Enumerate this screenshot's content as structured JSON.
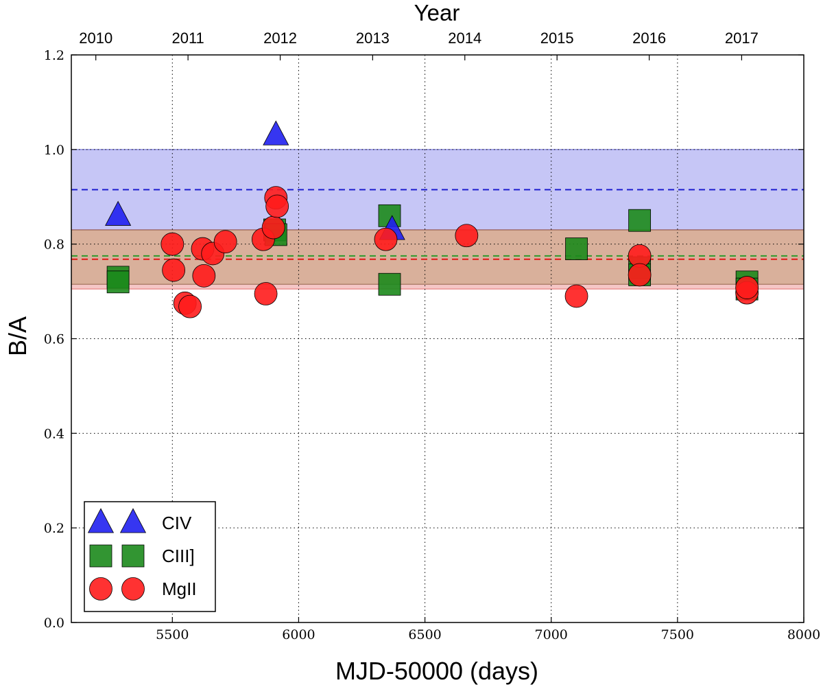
{
  "chart_data": {
    "type": "scatter",
    "title": "",
    "xlabel": "MJD-50000 (days)",
    "ylabel": "B/A",
    "top_axis_label": "Year",
    "xlim": [
      5100,
      8000
    ],
    "ylim": [
      0.0,
      1.2
    ],
    "grid": true,
    "x_ticks": [
      5500,
      6000,
      6500,
      7000,
      7500,
      8000
    ],
    "y_ticks": [
      0.0,
      0.2,
      0.4,
      0.6,
      0.8,
      1.0,
      1.2
    ],
    "top_ticks": [
      {
        "label": "2010",
        "x": 5197
      },
      {
        "label": "2011",
        "x": 5562
      },
      {
        "label": "2012",
        "x": 5927
      },
      {
        "label": "2013",
        "x": 6293
      },
      {
        "label": "2014",
        "x": 6658
      },
      {
        "label": "2015",
        "x": 7023
      },
      {
        "label": "2016",
        "x": 7388
      },
      {
        "label": "2017",
        "x": 7754
      }
    ],
    "bands": [
      {
        "name": "CIV range",
        "y0": 0.83,
        "y1": 1.0,
        "color": "#bcbcf5",
        "edge": "#4444cc"
      },
      {
        "name": "MgII range",
        "y0": 0.705,
        "y1": 0.83,
        "color": "#f3bcbc",
        "edge": "#e06060"
      },
      {
        "name": "CIII] range",
        "y0": 0.715,
        "y1": 0.83,
        "color": "#d3ab93",
        "edge": "#8a5a40"
      }
    ],
    "mean_lines": [
      {
        "name": "CIV mean",
        "y": 0.915,
        "color": "#1f1fd0"
      },
      {
        "name": "CIII] mean",
        "y": 0.775,
        "color": "#2d9a2d"
      },
      {
        "name": "MgII mean",
        "y": 0.768,
        "color": "#e01818"
      }
    ],
    "series": [
      {
        "name": "CIV",
        "marker": "triangle",
        "color": "#2020f0",
        "points": [
          [
            5285,
            0.86
          ],
          [
            5910,
            1.03
          ],
          [
            6370,
            0.83
          ]
        ]
      },
      {
        "name": "CIII]",
        "marker": "square",
        "color": "#1c8a1c",
        "points": [
          [
            5285,
            0.73
          ],
          [
            5285,
            0.72
          ],
          [
            5905,
            0.83
          ],
          [
            5910,
            0.82
          ],
          [
            6360,
            0.86
          ],
          [
            6360,
            0.715
          ],
          [
            7100,
            0.79
          ],
          [
            7350,
            0.85
          ],
          [
            7350,
            0.75
          ],
          [
            7350,
            0.735
          ],
          [
            7775,
            0.72
          ],
          [
            7775,
            0.705
          ]
        ]
      },
      {
        "name": "MgII",
        "marker": "circle",
        "color": "#ff1c1c",
        "points": [
          [
            5500,
            0.8
          ],
          [
            5505,
            0.745
          ],
          [
            5550,
            0.675
          ],
          [
            5570,
            0.668
          ],
          [
            5620,
            0.79
          ],
          [
            5625,
            0.733
          ],
          [
            5660,
            0.78
          ],
          [
            5710,
            0.805
          ],
          [
            5860,
            0.81
          ],
          [
            5870,
            0.695
          ],
          [
            5900,
            0.835
          ],
          [
            5910,
            0.898
          ],
          [
            5915,
            0.88
          ],
          [
            6345,
            0.81
          ],
          [
            6665,
            0.818
          ],
          [
            7100,
            0.69
          ],
          [
            7350,
            0.775
          ],
          [
            7350,
            0.735
          ],
          [
            7775,
            0.697
          ],
          [
            7775,
            0.708
          ]
        ]
      }
    ],
    "legend": {
      "position": "lower-left",
      "entries": [
        "CIV",
        "CIII]",
        "MgII"
      ]
    }
  }
}
